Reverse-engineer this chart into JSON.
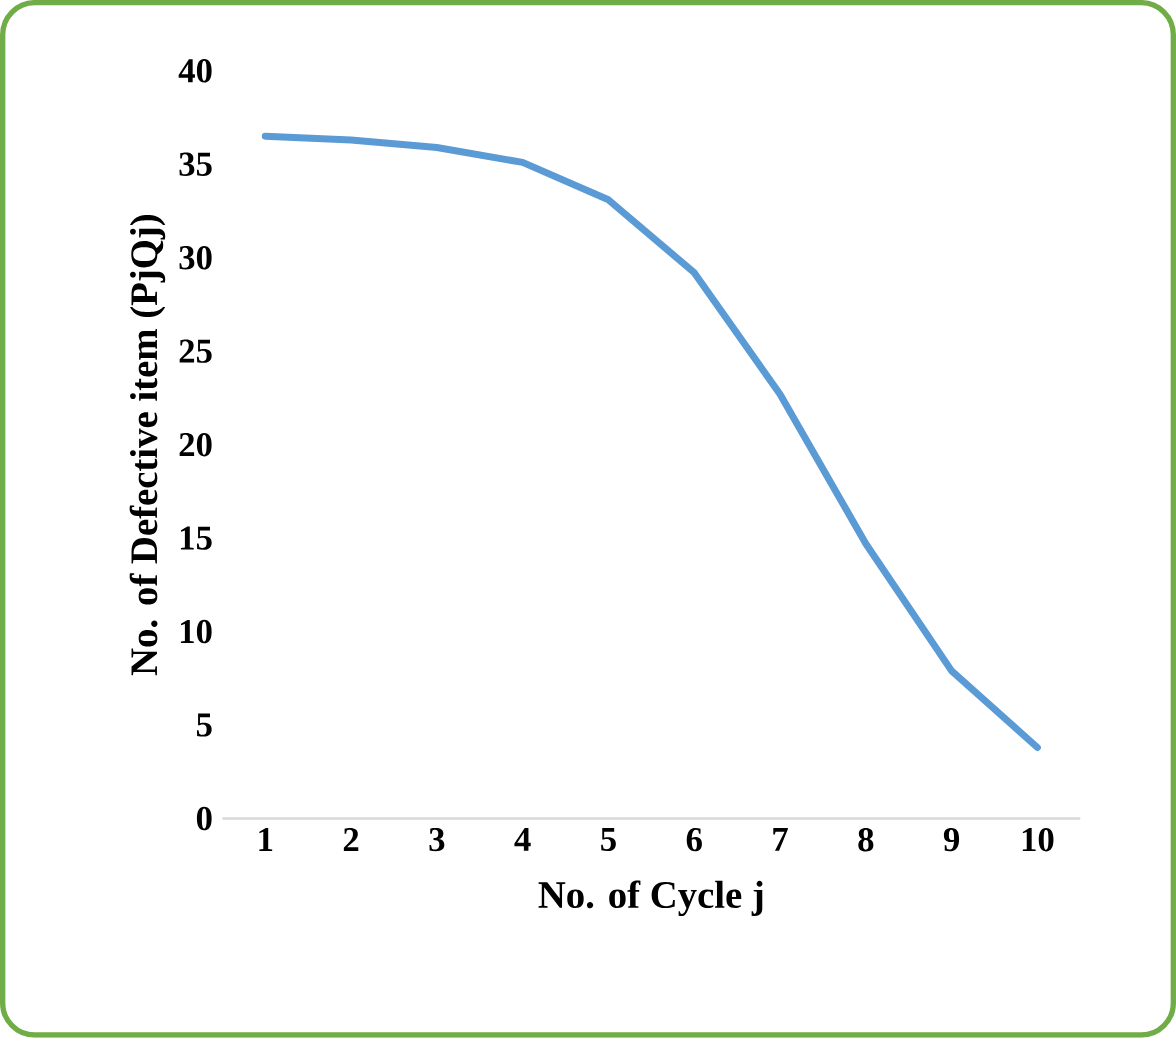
{
  "chart_data": {
    "type": "line",
    "xlabel": "No. of Cycle j",
    "ylabel": "No. of  Defective item (PjQj)",
    "categories": [
      "1",
      "2",
      "3",
      "4",
      "5",
      "6",
      "7",
      "8",
      "9",
      "10"
    ],
    "series": [
      {
        "color": "#5b9bd5",
        "values": [
          36.5,
          36.3,
          35.9,
          35.1,
          33.1,
          29.2,
          22.7,
          14.7,
          7.9,
          3.8
        ]
      }
    ],
    "ylim": [
      0,
      40
    ],
    "yticks": [
      0,
      5,
      10,
      15,
      20,
      25,
      30,
      35,
      40
    ],
    "grid": false,
    "marker": "none",
    "line_style": "solid"
  }
}
